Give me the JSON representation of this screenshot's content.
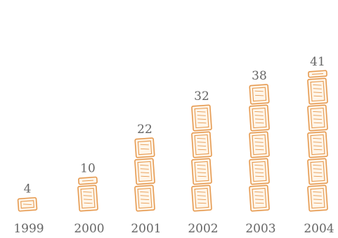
{
  "chart_data": {
    "type": "bar",
    "categories": [
      "1999",
      "2000",
      "2001",
      "2002",
      "2003",
      "2004"
    ],
    "values": [
      4,
      10,
      22,
      32,
      38,
      41
    ],
    "data_labels": [
      "4",
      "10",
      "22",
      "32",
      "38",
      "41"
    ],
    "title": "",
    "xlabel": "",
    "ylabel": "",
    "ylim": [
      0,
      41
    ],
    "grid": false,
    "legend": "none",
    "unit_per_icon": 8,
    "colors": {
      "icon": "#e69a50",
      "text": "#666666"
    },
    "icon": "document-icon"
  }
}
